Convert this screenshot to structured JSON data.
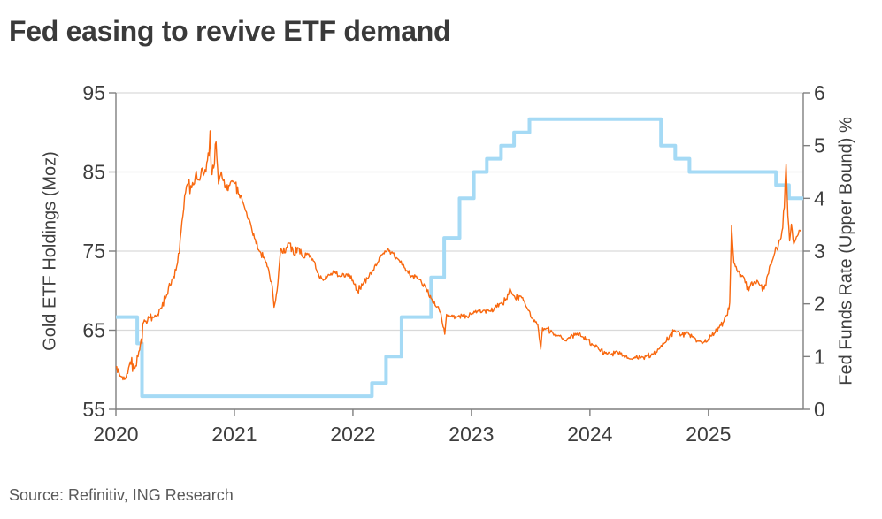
{
  "page": {
    "title": "Fed easing to revive ETF demand",
    "source": "Source: Refinitiv, ING Research"
  },
  "chart_data": {
    "type": "line",
    "title": "Fed easing to revive ETF demand",
    "grid": true,
    "legend": "none",
    "x_axis": {
      "domain": [
        2020.0,
        2025.8
      ],
      "ticks": [
        2020,
        2021,
        2022,
        2023,
        2024,
        2025
      ]
    },
    "left_axis": {
      "label": "Gold ETF  Holdings (Moz)",
      "domain": [
        55,
        95
      ],
      "ticks": [
        55,
        65,
        75,
        85,
        95
      ]
    },
    "right_axis": {
      "label": "Fed Funds Rate (Upper Bound) %",
      "domain": [
        0,
        6
      ],
      "ticks": [
        0,
        1,
        2,
        3,
        4,
        5,
        6
      ]
    },
    "colors": {
      "grid": "#d9d9d9",
      "axis": "#7f7f7f",
      "tick_text": "#3d3d3d"
    },
    "series": [
      {
        "name": "Fed Funds Rate (Upper Bound) %",
        "axis": "right",
        "style": "step",
        "color": "#a5daf5",
        "width": 4,
        "points": [
          [
            2020.0,
            1.75
          ],
          [
            2020.18,
            1.25
          ],
          [
            2020.22,
            0.25
          ],
          [
            2022.16,
            0.5
          ],
          [
            2022.28,
            1.0
          ],
          [
            2022.41,
            1.75
          ],
          [
            2022.66,
            2.5
          ],
          [
            2022.77,
            3.25
          ],
          [
            2022.9,
            4.0
          ],
          [
            2023.02,
            4.5
          ],
          [
            2023.13,
            4.75
          ],
          [
            2023.25,
            5.0
          ],
          [
            2023.36,
            5.25
          ],
          [
            2023.49,
            5.5
          ],
          [
            2024.6,
            5.0
          ],
          [
            2024.72,
            4.75
          ],
          [
            2024.84,
            4.5
          ],
          [
            2025.57,
            4.25
          ],
          [
            2025.68,
            4.0
          ],
          [
            2025.8,
            4.0
          ]
        ]
      },
      {
        "name": "Gold ETF Holdings (Moz)",
        "axis": "left",
        "style": "jagged-line",
        "color": "#f8680f",
        "width": 1.4,
        "points": [
          [
            2020.0,
            60.3,
            0.8
          ],
          [
            2020.04,
            59.2,
            0.8
          ],
          [
            2020.08,
            58.9,
            0.9
          ],
          [
            2020.12,
            61.0,
            1.3
          ],
          [
            2020.16,
            60.2,
            1.0
          ],
          [
            2020.2,
            62.5,
            1.6
          ],
          [
            2020.24,
            66.3,
            1.2
          ],
          [
            2020.28,
            66.6,
            0.8
          ],
          [
            2020.33,
            66.9,
            0.8
          ],
          [
            2020.38,
            67.8,
            0.8
          ],
          [
            2020.43,
            69.5,
            0.9
          ],
          [
            2020.48,
            71.5,
            0.9
          ],
          [
            2020.52,
            73.5,
            1.0
          ],
          [
            2020.55,
            77.5,
            1.2
          ],
          [
            2020.58,
            82.0,
            1.4
          ],
          [
            2020.61,
            83.5,
            1.4
          ],
          [
            2020.64,
            83.0,
            1.5
          ],
          [
            2020.67,
            84.5,
            1.6
          ],
          [
            2020.7,
            84.0,
            1.6
          ],
          [
            2020.73,
            85.5,
            1.8
          ],
          [
            2020.76,
            85.0,
            2.0
          ],
          [
            2020.785,
            87.0,
            1.5
          ],
          [
            2020.795,
            90.2,
            0.3
          ],
          [
            2020.805,
            85.0,
            1.6
          ],
          [
            2020.825,
            85.5,
            1.8
          ],
          [
            2020.845,
            88.8,
            0.5
          ],
          [
            2020.865,
            83.5,
            1.4
          ],
          [
            2020.89,
            85.0,
            1.2
          ],
          [
            2020.92,
            83.0,
            1.0
          ],
          [
            2020.96,
            83.3,
            0.9
          ],
          [
            2021.0,
            83.6,
            0.9
          ],
          [
            2021.04,
            82.2,
            0.8
          ],
          [
            2021.08,
            80.8,
            0.8
          ],
          [
            2021.13,
            78.8,
            0.7
          ],
          [
            2021.17,
            76.6,
            0.6
          ],
          [
            2021.21,
            75.0,
            0.6
          ],
          [
            2021.25,
            74.2,
            0.6
          ],
          [
            2021.29,
            72.6,
            0.6
          ],
          [
            2021.32,
            70.5,
            0.7
          ],
          [
            2021.335,
            67.9,
            0.4
          ],
          [
            2021.36,
            70.0,
            0.6
          ],
          [
            2021.39,
            75.3,
            0.7
          ],
          [
            2021.43,
            74.8,
            0.7
          ],
          [
            2021.46,
            76.0,
            0.8
          ],
          [
            2021.5,
            74.6,
            0.7
          ],
          [
            2021.54,
            75.4,
            0.7
          ],
          [
            2021.58,
            74.2,
            0.6
          ],
          [
            2021.62,
            74.6,
            0.6
          ],
          [
            2021.66,
            74.0,
            0.6
          ],
          [
            2021.7,
            72.3,
            0.6
          ],
          [
            2021.75,
            71.3,
            0.6
          ],
          [
            2021.8,
            72.0,
            0.6
          ],
          [
            2021.85,
            72.4,
            0.6
          ],
          [
            2021.9,
            71.8,
            0.6
          ],
          [
            2021.95,
            72.1,
            0.6
          ],
          [
            2022.0,
            71.3,
            0.7
          ],
          [
            2022.04,
            69.9,
            1.0
          ],
          [
            2022.08,
            70.7,
            0.7
          ],
          [
            2022.13,
            71.6,
            0.6
          ],
          [
            2022.17,
            72.6,
            0.6
          ],
          [
            2022.21,
            73.6,
            0.6
          ],
          [
            2022.25,
            74.6,
            0.6
          ],
          [
            2022.29,
            75.2,
            0.6
          ],
          [
            2022.33,
            74.9,
            0.6
          ],
          [
            2022.38,
            74.0,
            0.6
          ],
          [
            2022.42,
            73.2,
            0.6
          ],
          [
            2022.46,
            72.5,
            0.6
          ],
          [
            2022.5,
            71.8,
            0.6
          ],
          [
            2022.55,
            71.5,
            0.5
          ],
          [
            2022.58,
            71.0,
            0.5
          ],
          [
            2022.62,
            70.2,
            0.6
          ],
          [
            2022.66,
            69.0,
            0.6
          ],
          [
            2022.7,
            68.0,
            0.6
          ],
          [
            2022.74,
            67.3,
            0.7
          ],
          [
            2022.775,
            64.5,
            0.3
          ],
          [
            2022.79,
            67.0,
            0.6
          ],
          [
            2022.83,
            66.8,
            0.5
          ],
          [
            2022.88,
            66.7,
            0.5
          ],
          [
            2022.92,
            66.9,
            0.5
          ],
          [
            2022.96,
            66.8,
            0.5
          ],
          [
            2023.0,
            67.0,
            0.5
          ],
          [
            2023.05,
            67.4,
            0.5
          ],
          [
            2023.1,
            67.5,
            0.5
          ],
          [
            2023.15,
            67.4,
            0.6
          ],
          [
            2023.2,
            67.9,
            0.6
          ],
          [
            2023.25,
            68.4,
            0.6
          ],
          [
            2023.3,
            68.9,
            0.8
          ],
          [
            2023.325,
            70.3,
            0.3
          ],
          [
            2023.37,
            69.0,
            0.8
          ],
          [
            2023.41,
            69.3,
            0.8
          ],
          [
            2023.44,
            68.7,
            0.7
          ],
          [
            2023.48,
            67.5,
            0.6
          ],
          [
            2023.52,
            66.4,
            0.6
          ],
          [
            2023.56,
            65.7,
            0.7
          ],
          [
            2023.585,
            62.6,
            0.3
          ],
          [
            2023.6,
            65.3,
            0.6
          ],
          [
            2023.63,
            65.2,
            0.5
          ],
          [
            2023.68,
            64.8,
            0.5
          ],
          [
            2023.73,
            64.3,
            0.5
          ],
          [
            2023.78,
            63.8,
            0.5
          ],
          [
            2023.83,
            64.0,
            0.5
          ],
          [
            2023.88,
            64.6,
            0.6
          ],
          [
            2023.93,
            64.2,
            0.5
          ],
          [
            2023.98,
            63.8,
            0.5
          ],
          [
            2024.03,
            63.1,
            0.5
          ],
          [
            2024.08,
            62.5,
            0.5
          ],
          [
            2024.13,
            62.1,
            0.5
          ],
          [
            2024.18,
            61.9,
            0.5
          ],
          [
            2024.23,
            62.3,
            0.5
          ],
          [
            2024.28,
            61.8,
            0.5
          ],
          [
            2024.33,
            61.4,
            0.5
          ],
          [
            2024.38,
            61.6,
            0.5
          ],
          [
            2024.43,
            61.5,
            0.5
          ],
          [
            2024.48,
            61.8,
            0.5
          ],
          [
            2024.53,
            62.0,
            0.5
          ],
          [
            2024.58,
            62.6,
            0.5
          ],
          [
            2024.63,
            63.4,
            0.5
          ],
          [
            2024.68,
            64.5,
            0.7
          ],
          [
            2024.72,
            64.9,
            0.7
          ],
          [
            2024.77,
            64.4,
            0.6
          ],
          [
            2024.82,
            64.8,
            0.6
          ],
          [
            2024.87,
            64.2,
            0.5
          ],
          [
            2024.92,
            63.6,
            0.5
          ],
          [
            2024.96,
            63.5,
            0.5
          ],
          [
            2025.0,
            63.9,
            0.5
          ],
          [
            2025.05,
            64.6,
            0.5
          ],
          [
            2025.09,
            65.3,
            0.6
          ],
          [
            2025.13,
            66.1,
            0.6
          ],
          [
            2025.16,
            66.9,
            0.7
          ],
          [
            2025.18,
            68.5,
            0.8
          ],
          [
            2025.195,
            78.2,
            0.3
          ],
          [
            2025.215,
            73.5,
            0.8
          ],
          [
            2025.24,
            72.6,
            0.9
          ],
          [
            2025.28,
            71.8,
            0.8
          ],
          [
            2025.31,
            71.0,
            0.8
          ],
          [
            2025.34,
            70.0,
            0.8
          ],
          [
            2025.38,
            70.9,
            0.7
          ],
          [
            2025.41,
            71.3,
            0.7
          ],
          [
            2025.44,
            70.6,
            0.7
          ],
          [
            2025.47,
            70.2,
            0.7
          ],
          [
            2025.5,
            72.0,
            0.8
          ],
          [
            2025.53,
            73.3,
            0.9
          ],
          [
            2025.56,
            74.8,
            0.9
          ],
          [
            2025.59,
            75.8,
            0.8
          ],
          [
            2025.62,
            77.5,
            0.9
          ],
          [
            2025.64,
            80.5,
            0.8
          ],
          [
            2025.655,
            86.0,
            0.3
          ],
          [
            2025.67,
            79.5,
            0.5
          ],
          [
            2025.685,
            76.3,
            0.5
          ],
          [
            2025.7,
            78.4,
            0.5
          ],
          [
            2025.72,
            75.9,
            0.6
          ],
          [
            2025.75,
            76.9,
            0.6
          ],
          [
            2025.78,
            77.5,
            0.5
          ]
        ]
      }
    ]
  }
}
